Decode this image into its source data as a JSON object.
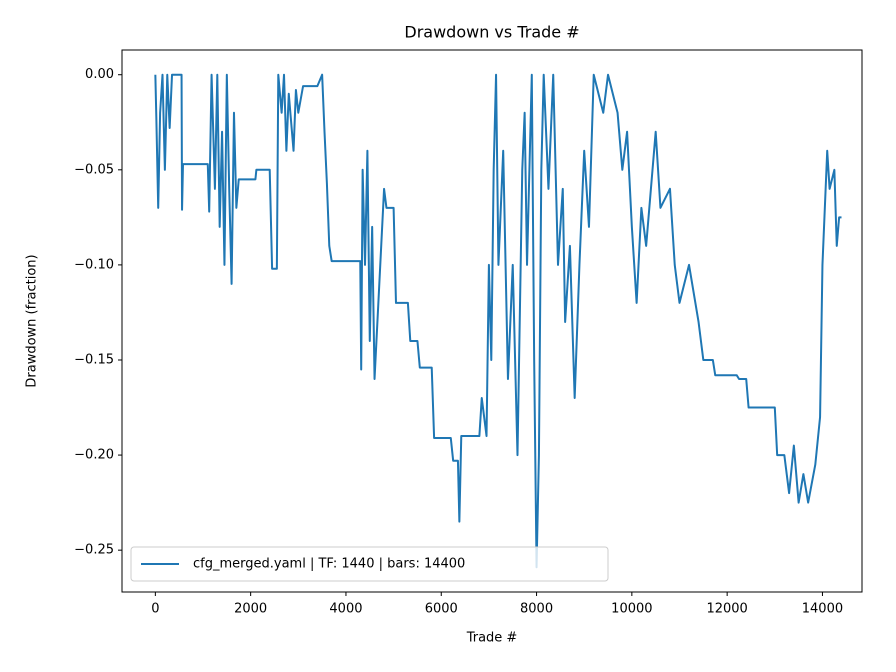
{
  "chart_data": {
    "type": "line",
    "title": "Drawdown vs Trade #",
    "xlabel": "Trade #",
    "ylabel": "Drawdown (fraction)",
    "x": [
      0,
      20,
      60,
      100,
      150,
      200,
      250,
      300,
      350,
      550,
      560,
      580,
      1100,
      1130,
      1180,
      1250,
      1300,
      1350,
      1400,
      1450,
      1500,
      1550,
      1600,
      1650,
      1700,
      1750,
      2100,
      2120,
      2400,
      2450,
      2550,
      2580,
      2650,
      2700,
      2750,
      2800,
      2900,
      2950,
      3000,
      3100,
      3400,
      3500,
      3550,
      3600,
      3650,
      3700,
      4300,
      4320,
      4350,
      4400,
      4450,
      4500,
      4550,
      4600,
      4700,
      4800,
      4850,
      5000,
      5050,
      5300,
      5350,
      5500,
      5550,
      5800,
      5850,
      6200,
      6250,
      6350,
      6380,
      6420,
      6800,
      6850,
      6950,
      7000,
      7050,
      7100,
      7150,
      7200,
      7300,
      7400,
      7500,
      7600,
      7700,
      7750,
      7800,
      7900,
      7950,
      8000,
      8050,
      8100,
      8150,
      8250,
      8350,
      8450,
      8550,
      8600,
      8700,
      8800,
      8900,
      9000,
      9100,
      9200,
      9400,
      9500,
      9600,
      9700,
      9800,
      9900,
      10000,
      10100,
      10200,
      10300,
      10500,
      10600,
      10800,
      10900,
      11000,
      11200,
      11400,
      11500,
      11700,
      11750,
      12200,
      12250,
      12400,
      12450,
      12700,
      13000,
      13050,
      13200,
      13300,
      13400,
      13500,
      13600,
      13700,
      13850,
      13950,
      14000,
      14100,
      14150,
      14250,
      14300,
      14350,
      14400
    ],
    "series": [
      {
        "name": "cfg_merged.yaml | TF: 1440 | bars: 14400",
        "color": "#1f77b4",
        "values": [
          0,
          -0.022,
          -0.07,
          -0.02,
          0,
          -0.05,
          0,
          -0.028,
          0,
          0,
          -0.071,
          -0.047,
          -0.047,
          -0.072,
          0,
          -0.06,
          0,
          -0.08,
          -0.03,
          -0.1,
          0,
          -0.06,
          -0.11,
          -0.02,
          -0.07,
          -0.055,
          -0.055,
          -0.05,
          -0.05,
          -0.102,
          -0.102,
          0,
          -0.02,
          0,
          -0.04,
          -0.01,
          -0.04,
          -0.008,
          -0.02,
          -0.006,
          -0.006,
          0,
          -0.03,
          -0.057,
          -0.09,
          -0.098,
          -0.098,
          -0.155,
          -0.05,
          -0.1,
          -0.04,
          -0.14,
          -0.08,
          -0.16,
          -0.11,
          -0.06,
          -0.07,
          -0.07,
          -0.12,
          -0.12,
          -0.14,
          -0.14,
          -0.154,
          -0.154,
          -0.191,
          -0.191,
          -0.203,
          -0.203,
          -0.235,
          -0.19,
          -0.19,
          -0.17,
          -0.19,
          -0.1,
          -0.15,
          -0.05,
          0,
          -0.1,
          -0.04,
          -0.16,
          -0.1,
          -0.2,
          -0.05,
          -0.02,
          -0.1,
          0,
          -0.15,
          -0.259,
          -0.2,
          -0.05,
          0,
          -0.06,
          0,
          -0.1,
          -0.06,
          -0.13,
          -0.09,
          -0.17,
          -0.1,
          -0.04,
          -0.08,
          0,
          -0.02,
          0,
          -0.01,
          -0.02,
          -0.05,
          -0.03,
          -0.08,
          -0.12,
          -0.07,
          -0.09,
          -0.03,
          -0.07,
          -0.06,
          -0.1,
          -0.12,
          -0.1,
          -0.13,
          -0.15,
          -0.15,
          -0.158,
          -0.158,
          -0.16,
          -0.16,
          -0.175,
          -0.175,
          -0.175,
          -0.2,
          -0.2,
          -0.22,
          -0.195,
          -0.225,
          -0.21,
          -0.225,
          -0.205,
          -0.18,
          -0.1,
          -0.04,
          -0.06,
          -0.05,
          -0.09,
          -0.075,
          -0.075
        ]
      }
    ],
    "xlim": [
      -700,
      14830
    ],
    "ylim": [
      -0.272,
      0.013
    ],
    "xticks": [
      0,
      2000,
      4000,
      6000,
      8000,
      10000,
      12000,
      14000
    ],
    "yticks": [
      {
        "value": 0,
        "label": "0.00"
      },
      {
        "value": -0.05,
        "label": "−0.05"
      },
      {
        "value": -0.1,
        "label": "−0.10"
      },
      {
        "value": -0.15,
        "label": "−0.15"
      },
      {
        "value": -0.2,
        "label": "−0.20"
      },
      {
        "value": -0.25,
        "label": "−0.25"
      }
    ],
    "legend": "lower left",
    "grid": false
  }
}
